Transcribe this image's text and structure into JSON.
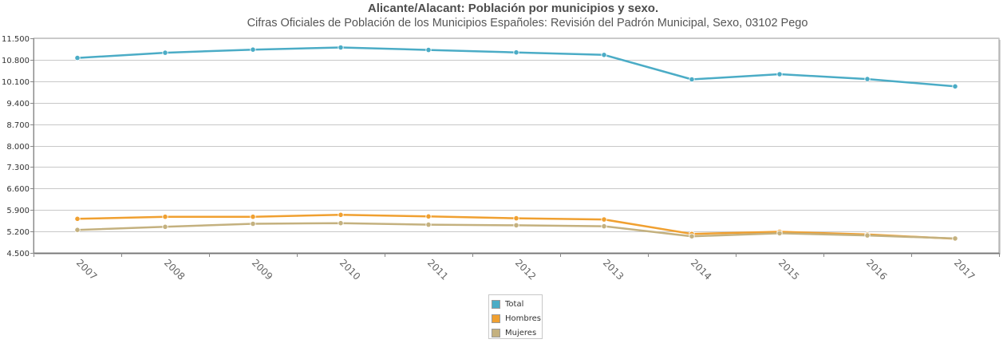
{
  "chart_data": {
    "type": "line",
    "title": "Alicante/Alacant: Población por municipios y sexo.",
    "subtitle": "Cifras Oficiales de Población de los Municipios Españoles: Revisión del Padrón Municipal, Sexo, 03102 Pego",
    "xlabel": "",
    "ylabel": "",
    "categories": [
      "2007",
      "2008",
      "2009",
      "2010",
      "2011",
      "2012",
      "2013",
      "2014",
      "2015",
      "2016",
      "2017"
    ],
    "ylim": [
      4500,
      11500
    ],
    "yticks": [
      4500,
      5200,
      5900,
      6600,
      7300,
      8000,
      8700,
      9400,
      10100,
      10800,
      11500
    ],
    "ytick_labels": [
      "4.500",
      "5.200",
      "5.900",
      "6.600",
      "7.300",
      "8.000",
      "8.700",
      "9.400",
      "10.100",
      "10.800",
      "11.500"
    ],
    "grid": true,
    "legend_position": "bottom-center",
    "series": [
      {
        "name": "Total",
        "color": "#4bacc6",
        "values": [
          10860,
          11030,
          11130,
          11200,
          11120,
          11040,
          10960,
          10160,
          10330,
          10170,
          9930
        ]
      },
      {
        "name": "Hombres",
        "color": "#f0a030",
        "values": [
          5610,
          5680,
          5680,
          5740,
          5690,
          5630,
          5590,
          5120,
          5190,
          5100,
          4960
        ]
      },
      {
        "name": "Mujeres",
        "color": "#c4b17f",
        "values": [
          5250,
          5350,
          5450,
          5470,
          5420,
          5400,
          5370,
          5040,
          5140,
          5070,
          4970
        ]
      }
    ]
  }
}
